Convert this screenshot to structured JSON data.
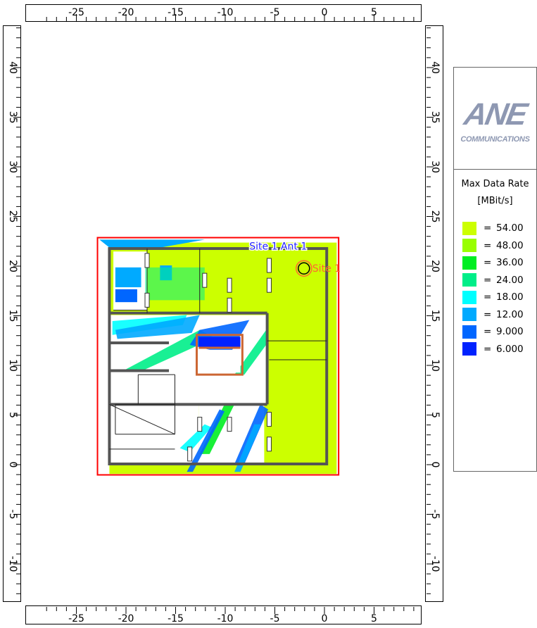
{
  "axes": {
    "x_ticks": [
      "-25",
      "-20",
      "-15",
      "-10",
      "-5",
      "0",
      "5"
    ],
    "y_ticks": [
      "40",
      "35",
      "30",
      "25",
      "20",
      "15",
      "10",
      "5",
      "0",
      "-5",
      "-10"
    ]
  },
  "map": {
    "site_label": "Site  1",
    "antenna_label": "Site  1 Ant  1",
    "site_position": {
      "x": -2.0,
      "y": 19.7
    },
    "building_extent": {
      "xmin": -21.6,
      "xmax": 0.3,
      "ymin": 0.0,
      "ymax": 21.7
    },
    "coverage_extent": {
      "xmin": -22.8,
      "xmax": 1.5,
      "ymin": -1.1,
      "ymax": 22.8
    },
    "colors": {
      "coverage_area": "#ff0000",
      "walls": "#555555",
      "window_frame": "#cc6633",
      "site_marker": "#ff6633",
      "antenna_label": "#2222ff"
    }
  },
  "legend": {
    "logo_text": "ANE",
    "logo_subtext": "COMMUNICATIONS",
    "title": "Max Data Rate",
    "unit": "[MBit/s]",
    "items": [
      {
        "color": "#ccff00",
        "eq": "=",
        "value": "54.00"
      },
      {
        "color": "#99ff00",
        "eq": "=",
        "value": "48.00"
      },
      {
        "color": "#00ee22",
        "eq": "=",
        "value": "36.00"
      },
      {
        "color": "#00ee88",
        "eq": "=",
        "value": "24.00"
      },
      {
        "color": "#00ffff",
        "eq": "=",
        "value": "18.00"
      },
      {
        "color": "#00aaff",
        "eq": "=",
        "value": "12.00"
      },
      {
        "color": "#0066ff",
        "eq": "=",
        "value": "9.000"
      },
      {
        "color": "#0022ff",
        "eq": "=",
        "value": "6.000"
      }
    ]
  }
}
